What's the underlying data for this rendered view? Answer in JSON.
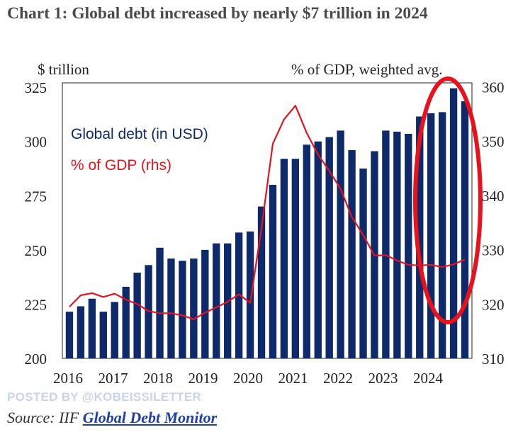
{
  "title": "Chart 1: Global debt increased by nearly $7 trillion in 2024",
  "left_axis_unit": "$ trillion",
  "right_axis_unit": "% of GDP, weighted avg.",
  "posted_by": "POSTED BY @KOBEISSILETTER",
  "source_prefix": "Source: IIF ",
  "source_link": "Global Debt Monitor",
  "chart_data": {
    "type": "bar",
    "title": "Chart 1: Global debt increased by nearly $7 trillion in 2024",
    "x_tick_labels": [
      "2016",
      "2017",
      "2018",
      "2019",
      "2020",
      "2021",
      "2022",
      "2023",
      "2024"
    ],
    "left_axis": {
      "ticks": [
        200,
        225,
        250,
        275,
        300,
        325
      ],
      "ylim": [
        200,
        327
      ]
    },
    "right_axis": {
      "ticks": [
        310,
        320,
        330,
        340,
        350,
        360
      ],
      "ylim": [
        310,
        360.7
      ]
    },
    "legend": [
      {
        "label": "Global debt (in USD)",
        "color": "#0f2a6b"
      },
      {
        "label": "% of GDP (rhs)",
        "color": "#e8121c"
      }
    ],
    "series": [
      {
        "name": "Global debt (in USD)",
        "axis": "left",
        "type": "bar",
        "color": "#0f2a6b",
        "x": [
          "2016Q1",
          "2016Q2",
          "2016Q3",
          "2016Q4",
          "2017Q1",
          "2017Q2",
          "2017Q3",
          "2017Q4",
          "2018Q1",
          "2018Q2",
          "2018Q3",
          "2018Q4",
          "2019Q1",
          "2019Q2",
          "2019Q3",
          "2019Q4",
          "2020Q1",
          "2020Q2",
          "2020Q3",
          "2020Q4",
          "2021Q1",
          "2021Q2",
          "2021Q3",
          "2021Q4",
          "2022Q1",
          "2022Q2",
          "2022Q3",
          "2022Q4",
          "2023Q1",
          "2023Q2",
          "2023Q3",
          "2023Q4",
          "2024Q1",
          "2024Q2",
          "2024Q3",
          "2024Q4"
        ],
        "values": [
          221.5,
          224,
          227.5,
          221.5,
          226,
          233,
          239.5,
          243,
          251,
          246,
          245,
          246,
          250,
          253,
          253,
          258,
          258.5,
          270,
          280,
          292,
          292,
          298.5,
          300,
          302,
          305,
          296,
          287.5,
          295.5,
          305,
          304.5,
          303.5,
          311.5,
          313,
          313.5,
          324.5,
          318.5
        ]
      },
      {
        "name": "% of GDP (rhs)",
        "axis": "right",
        "type": "line",
        "color": "#e8121c",
        "x": [
          "2016Q1",
          "2016Q2",
          "2016Q3",
          "2016Q4",
          "2017Q1",
          "2017Q2",
          "2017Q3",
          "2017Q4",
          "2018Q1",
          "2018Q2",
          "2018Q3",
          "2018Q4",
          "2019Q1",
          "2019Q2",
          "2019Q3",
          "2019Q4",
          "2020Q1",
          "2020Q2",
          "2020Q3",
          "2020Q4",
          "2021Q1",
          "2021Q2",
          "2021Q3",
          "2021Q4",
          "2022Q1",
          "2022Q2",
          "2022Q3",
          "2022Q4",
          "2023Q1",
          "2023Q2",
          "2023Q3",
          "2023Q4",
          "2024Q1",
          "2024Q2",
          "2024Q3",
          "2024Q4"
        ],
        "values": [
          319.5,
          321.6,
          322,
          321.3,
          321.9,
          320.8,
          320,
          318.7,
          318.3,
          318.3,
          317.9,
          317.2,
          318.4,
          319.4,
          320.4,
          321.8,
          320.2,
          334,
          349.5,
          354,
          356.5,
          351.5,
          347.5,
          344.5,
          341.2,
          336,
          332.7,
          328.9,
          329,
          328,
          327.2,
          327.1,
          327.2,
          326.8,
          327.3,
          328.2
        ]
      }
    ],
    "annotations": [
      {
        "type": "ellipse",
        "color": "#e8121c",
        "target": "2024"
      }
    ]
  }
}
